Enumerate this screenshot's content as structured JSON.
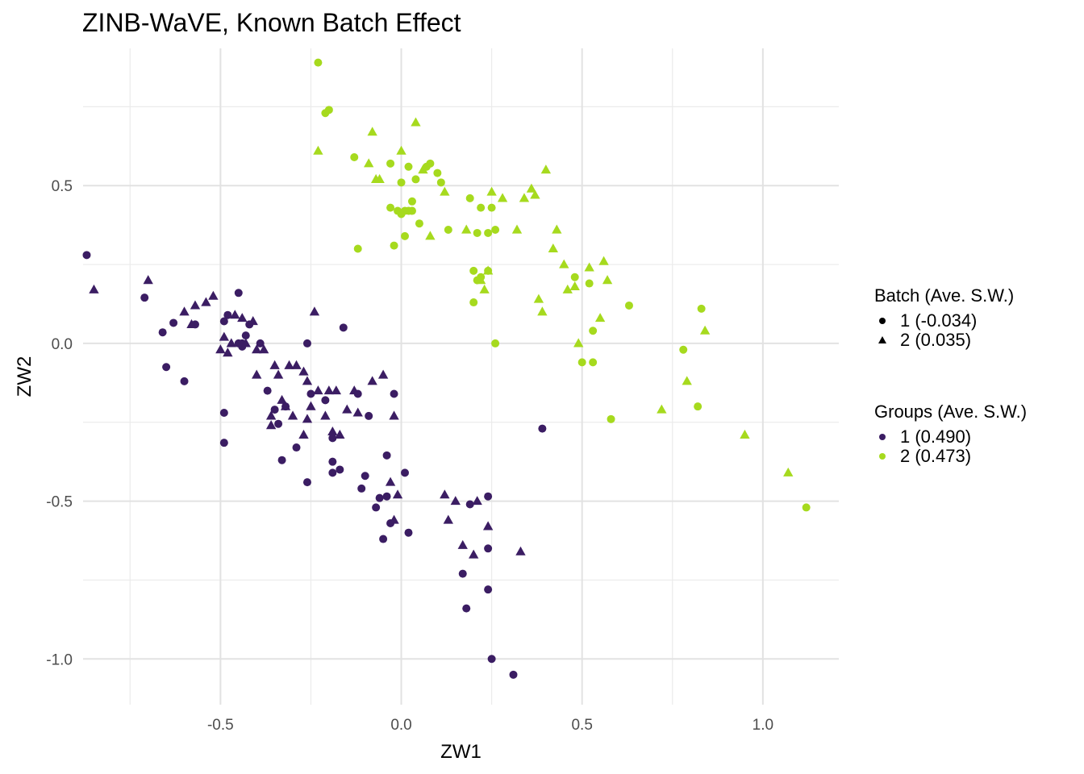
{
  "chart_data": {
    "type": "scatter",
    "title": "ZINB-WaVE, Known Batch Effect",
    "xlabel": "ZW1",
    "ylabel": "ZW2",
    "xlim": [
      -0.88,
      1.21
    ],
    "ylim": [
      -1.145,
      0.935
    ],
    "x_ticks": [
      -0.5,
      0.0,
      0.5,
      1.0
    ],
    "x_tick_labels": [
      "-0.5",
      "0.0",
      "0.5",
      "1.0"
    ],
    "y_ticks": [
      0.5,
      0.0,
      -0.5,
      -1.0
    ],
    "y_tick_labels": [
      "0.5",
      "0.0",
      "-0.5",
      "-1.0"
    ],
    "grid": true,
    "legend": {
      "position": "right",
      "batch": {
        "title": "Batch (Ave. S.W.)",
        "entries": [
          {
            "label": "1 (-0.034)",
            "shape": "circle"
          },
          {
            "label": "2 (0.035)",
            "shape": "triangle"
          }
        ]
      },
      "groups": {
        "title": "Groups (Ave. S.W.)",
        "entries": [
          {
            "label": "1 (0.490)",
            "color": "#3b1d63"
          },
          {
            "label": "2 (0.473)",
            "color": "#a6da1e"
          }
        ]
      }
    },
    "series": [
      {
        "name": "Group 1, Batch 1",
        "group": 1,
        "batch": 1,
        "color": "#3b1d63",
        "shape": "circle",
        "x": [
          -0.87,
          -0.71,
          -0.66,
          -0.65,
          -0.63,
          -0.6,
          -0.57,
          -0.49,
          -0.49,
          -0.49,
          -0.48,
          -0.45,
          -0.45,
          -0.44,
          -0.44,
          -0.43,
          -0.42,
          -0.39,
          -0.37,
          -0.35,
          -0.34,
          -0.33,
          -0.32,
          -0.29,
          -0.26,
          -0.26,
          -0.25,
          -0.21,
          -0.19,
          -0.19,
          -0.19,
          -0.17,
          -0.16,
          -0.12,
          -0.11,
          -0.1,
          -0.09,
          -0.07,
          -0.06,
          -0.05,
          -0.04,
          -0.04,
          -0.03,
          -0.02,
          0.01,
          0.02,
          0.17,
          0.18,
          0.19,
          0.24,
          0.24,
          0.24,
          0.25,
          0.31,
          0.39
        ],
        "y": [
          0.28,
          0.145,
          0.035,
          -0.075,
          0.065,
          -0.12,
          0.06,
          -0.22,
          -0.315,
          0.07,
          0.09,
          0.16,
          0.0,
          0.0,
          -0.01,
          0.025,
          0.06,
          0.0,
          -0.15,
          -0.21,
          -0.255,
          -0.37,
          -0.2,
          -0.33,
          -0.44,
          0.0,
          -0.16,
          -0.18,
          -0.3,
          -0.41,
          -0.375,
          -0.4,
          0.05,
          -0.16,
          -0.46,
          -0.42,
          -0.23,
          -0.52,
          -0.49,
          -0.62,
          -0.485,
          -0.355,
          -0.57,
          -0.16,
          -0.41,
          -0.6,
          -0.73,
          -0.84,
          -0.51,
          -0.485,
          -0.78,
          -0.65,
          -1.0,
          -1.05,
          -0.27
        ],
        "y_fix_note": "point list pairs by index"
      },
      {
        "name": "Group 1, Batch 2",
        "group": 1,
        "batch": 2,
        "color": "#3b1d63",
        "shape": "triangle",
        "x": [
          -0.85,
          -0.7,
          -0.6,
          -0.58,
          -0.57,
          -0.54,
          -0.52,
          -0.5,
          -0.49,
          -0.48,
          -0.47,
          -0.46,
          -0.44,
          -0.43,
          -0.41,
          -0.4,
          -0.4,
          -0.38,
          -0.36,
          -0.36,
          -0.35,
          -0.34,
          -0.33,
          -0.32,
          -0.31,
          -0.3,
          -0.29,
          -0.27,
          -0.27,
          -0.26,
          -0.26,
          -0.25,
          -0.24,
          -0.23,
          -0.21,
          -0.2,
          -0.19,
          -0.18,
          -0.17,
          -0.15,
          -0.13,
          -0.12,
          -0.08,
          -0.05,
          -0.03,
          -0.02,
          -0.02,
          -0.01,
          0.12,
          0.15,
          0.13,
          0.17,
          0.2,
          0.21,
          0.24,
          0.33
        ],
        "y": [
          0.17,
          0.2,
          0.1,
          0.06,
          0.12,
          0.13,
          0.15,
          -0.02,
          0.02,
          -0.03,
          0.0,
          0.09,
          0.08,
          0.0,
          0.07,
          -0.1,
          -0.02,
          -0.02,
          -0.23,
          -0.26,
          -0.07,
          -0.1,
          -0.18,
          -0.2,
          -0.07,
          -0.23,
          -0.07,
          -0.29,
          -0.09,
          -0.24,
          -0.12,
          -0.2,
          0.1,
          -0.15,
          -0.23,
          -0.15,
          -0.28,
          -0.15,
          -0.29,
          -0.21,
          -0.15,
          -0.22,
          -0.12,
          -0.1,
          -0.44,
          -0.23,
          -0.56,
          -0.48,
          -0.48,
          -0.5,
          -0.56,
          -0.64,
          -0.67,
          -0.5,
          -0.58,
          -0.66
        ]
      },
      {
        "name": "Group 2, Batch 1",
        "group": 2,
        "batch": 1,
        "color": "#a6da1e",
        "shape": "circle",
        "x": [
          -0.23,
          -0.21,
          -0.2,
          -0.13,
          -0.12,
          -0.03,
          -0.03,
          -0.02,
          -0.01,
          0.0,
          0.0,
          0.01,
          0.01,
          0.02,
          0.02,
          0.03,
          0.03,
          0.04,
          0.05,
          0.07,
          0.08,
          0.1,
          0.11,
          0.13,
          0.19,
          0.2,
          0.2,
          0.21,
          0.21,
          0.22,
          0.22,
          0.24,
          0.24,
          0.25,
          0.26,
          0.26,
          0.48,
          0.5,
          0.52,
          0.53,
          0.53,
          0.58,
          0.63,
          0.78,
          0.82,
          0.83,
          1.12
        ],
        "y": [
          0.89,
          0.73,
          0.74,
          0.59,
          0.3,
          0.57,
          0.43,
          0.31,
          0.42,
          0.51,
          0.41,
          0.34,
          0.42,
          0.56,
          0.42,
          0.45,
          0.42,
          0.52,
          0.38,
          0.56,
          0.57,
          0.54,
          0.51,
          0.36,
          0.46,
          0.23,
          0.13,
          0.35,
          0.2,
          0.21,
          0.43,
          0.23,
          0.35,
          0.43,
          0.36,
          0.0,
          0.21,
          -0.06,
          0.19,
          0.04,
          -0.06,
          -0.24,
          0.12,
          -0.02,
          -0.2,
          0.11,
          -0.52
        ]
      },
      {
        "name": "Group 2, Batch 2",
        "group": 2,
        "batch": 2,
        "color": "#a6da1e",
        "shape": "triangle",
        "x": [
          -0.23,
          -0.09,
          -0.08,
          -0.07,
          -0.06,
          0.0,
          0.04,
          0.06,
          0.08,
          0.12,
          0.18,
          0.22,
          0.23,
          0.24,
          0.25,
          0.28,
          0.32,
          0.34,
          0.36,
          0.37,
          0.38,
          0.39,
          0.4,
          0.42,
          0.43,
          0.45,
          0.46,
          0.48,
          0.49,
          0.52,
          0.55,
          0.56,
          0.57,
          0.72,
          0.79,
          0.84,
          0.95,
          1.07
        ],
        "y": [
          0.61,
          0.57,
          0.67,
          0.52,
          0.52,
          0.61,
          0.7,
          0.55,
          0.34,
          0.48,
          0.36,
          0.2,
          0.17,
          0.23,
          0.48,
          0.46,
          0.36,
          0.46,
          0.49,
          0.47,
          0.14,
          0.1,
          0.55,
          0.3,
          0.36,
          0.25,
          0.17,
          0.18,
          0.0,
          0.24,
          0.08,
          0.26,
          0.2,
          -0.21,
          -0.12,
          0.04,
          -0.29,
          -0.41
        ]
      }
    ]
  }
}
